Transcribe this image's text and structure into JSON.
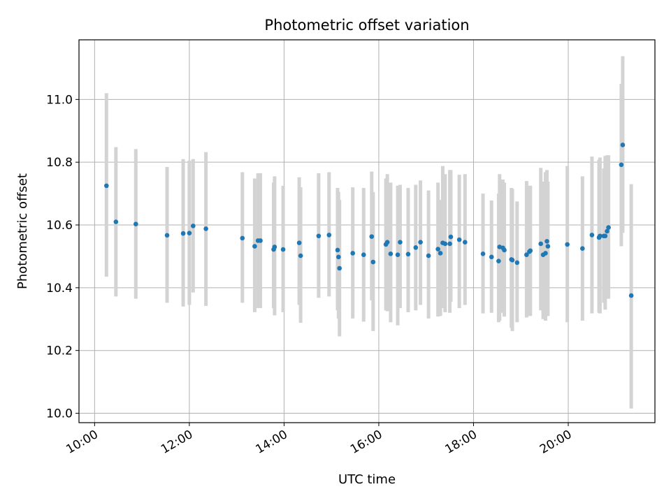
{
  "chart_data": {
    "type": "scatter",
    "title": "Photometric offset variation",
    "xlabel": "UTC time",
    "ylabel": "Photometric offset",
    "x_unit": "hours UTC",
    "xlim": [
      9.67,
      21.83
    ],
    "ylim": [
      9.97,
      11.19
    ],
    "x_ticks": [
      {
        "value": 10,
        "label": "10:00"
      },
      {
        "value": 12,
        "label": "12:00"
      },
      {
        "value": 14,
        "label": "14:00"
      },
      {
        "value": 16,
        "label": "16:00"
      },
      {
        "value": 18,
        "label": "18:00"
      },
      {
        "value": 20,
        "label": "20:00"
      }
    ],
    "y_ticks": [
      {
        "value": 10.0,
        "label": "10.0"
      },
      {
        "value": 10.2,
        "label": "10.2"
      },
      {
        "value": 10.4,
        "label": "10.4"
      },
      {
        "value": 10.6,
        "label": "10.6"
      },
      {
        "value": 10.8,
        "label": "10.8"
      },
      {
        "value": 11.0,
        "label": "11.0"
      }
    ],
    "grid": true,
    "point_color": "#1f77b4",
    "errorbar_color": "#d3d3d3",
    "series": [
      {
        "x": [
          10.25,
          10.45,
          10.87,
          11.53,
          11.87,
          12.0,
          12.08,
          12.35,
          13.12,
          13.38,
          13.45,
          13.5,
          13.78,
          13.8,
          13.98,
          14.32,
          14.35,
          14.73,
          14.95,
          15.13,
          15.15,
          15.17,
          15.45,
          15.68,
          15.85,
          15.88,
          16.15,
          16.18,
          16.25,
          16.4,
          16.45,
          16.62,
          16.78,
          16.88,
          17.05,
          17.25,
          17.3,
          17.35,
          17.4,
          17.5,
          17.52,
          17.7,
          17.82,
          18.2,
          18.38,
          18.53,
          18.55,
          18.62,
          18.65,
          18.8,
          18.82,
          18.92,
          19.12,
          19.18,
          19.2,
          19.42,
          19.47,
          19.52,
          19.55,
          19.57,
          19.98,
          20.3,
          20.5,
          20.65,
          20.67,
          20.75,
          20.78,
          20.82,
          20.85,
          21.12,
          21.15,
          21.33
        ],
        "y": [
          10.725,
          10.61,
          10.603,
          10.567,
          10.573,
          10.574,
          10.597,
          10.588,
          10.558,
          10.532,
          10.55,
          10.55,
          10.522,
          10.53,
          10.522,
          10.543,
          10.502,
          10.565,
          10.568,
          10.52,
          10.498,
          10.462,
          10.51,
          10.505,
          10.563,
          10.482,
          10.538,
          10.545,
          10.508,
          10.505,
          10.545,
          10.507,
          10.528,
          10.545,
          10.502,
          10.523,
          10.51,
          10.543,
          10.54,
          10.54,
          10.562,
          10.553,
          10.545,
          10.508,
          10.498,
          10.485,
          10.53,
          10.527,
          10.52,
          10.49,
          10.488,
          10.48,
          10.505,
          10.515,
          10.518,
          10.54,
          10.505,
          10.51,
          10.548,
          10.532,
          10.538,
          10.525,
          10.568,
          10.56,
          10.565,
          10.565,
          10.565,
          10.58,
          10.592,
          10.792,
          10.855,
          10.375
        ],
        "y_low": [
          10.435,
          10.372,
          10.365,
          10.352,
          10.34,
          10.345,
          10.385,
          10.342,
          10.352,
          10.322,
          10.335,
          10.335,
          10.335,
          10.312,
          10.322,
          10.345,
          10.288,
          10.368,
          10.372,
          10.328,
          10.302,
          10.245,
          10.302,
          10.292,
          10.36,
          10.262,
          10.328,
          10.325,
          10.29,
          10.28,
          10.335,
          10.322,
          10.328,
          10.345,
          10.302,
          10.308,
          10.31,
          10.335,
          10.322,
          10.32,
          10.355,
          10.335,
          10.345,
          10.318,
          10.32,
          10.29,
          10.295,
          10.32,
          10.308,
          10.272,
          10.262,
          10.29,
          10.305,
          10.31,
          10.31,
          10.328,
          10.3,
          10.295,
          10.31,
          10.31,
          10.29,
          10.295,
          10.318,
          10.32,
          10.318,
          10.352,
          10.33,
          10.365,
          10.365,
          10.532,
          10.575,
          10.015
        ],
        "y_high": [
          11.02,
          10.848,
          10.842,
          10.785,
          10.81,
          10.805,
          10.81,
          10.832,
          10.768,
          10.748,
          10.765,
          10.765,
          10.735,
          10.755,
          10.725,
          10.752,
          10.72,
          10.765,
          10.768,
          10.718,
          10.705,
          10.68,
          10.72,
          10.718,
          10.77,
          10.705,
          10.748,
          10.762,
          10.735,
          10.725,
          10.728,
          10.718,
          10.728,
          10.742,
          10.71,
          10.735,
          10.68,
          10.788,
          10.762,
          10.775,
          10.775,
          10.76,
          10.762,
          10.7,
          10.678,
          10.7,
          10.762,
          10.745,
          10.735,
          10.718,
          10.715,
          10.675,
          10.74,
          10.725,
          10.725,
          10.782,
          10.738,
          10.768,
          10.775,
          10.738,
          10.788,
          10.755,
          10.818,
          10.808,
          10.815,
          10.78,
          10.82,
          10.822,
          10.822,
          11.05,
          11.138,
          10.73
        ]
      }
    ]
  }
}
